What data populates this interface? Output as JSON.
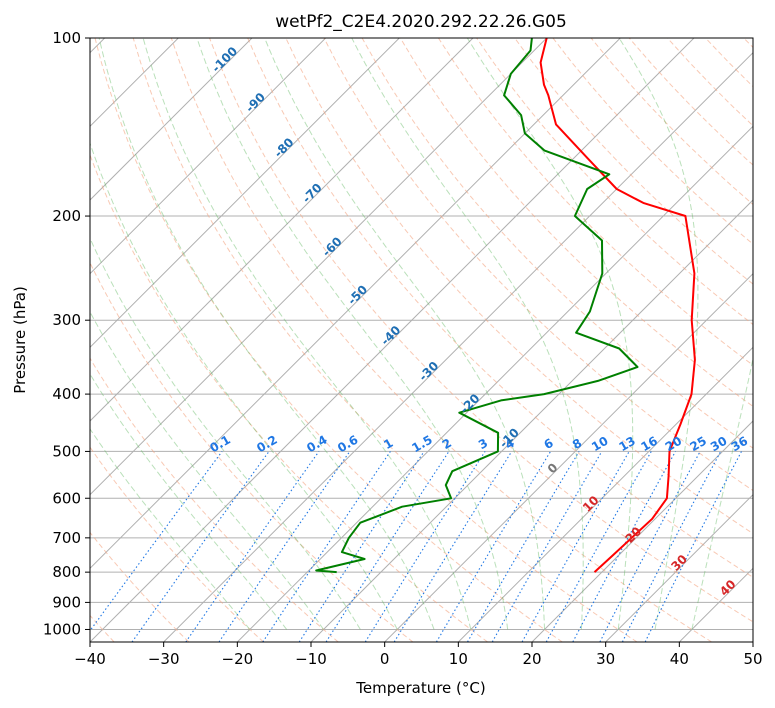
{
  "chart_data": {
    "type": "line",
    "title": "wetPf2_C2E4.2020.292.22.26.G05",
    "xlabel": "Temperature (°C)",
    "ylabel": "Pressure (hPa)",
    "xlim": [
      -40,
      50
    ],
    "ylim": [
      1050,
      100
    ],
    "y_scale": "log",
    "x_ticks": [
      "−40",
      "−30",
      "−20",
      "−10",
      "0",
      "10",
      "20",
      "30",
      "40",
      "50"
    ],
    "y_ticks": [
      "100",
      "200",
      "300",
      "400",
      "500",
      "600",
      "700",
      "800",
      "900",
      "1000"
    ],
    "grid": true,
    "skew_degrees": 45,
    "series": [
      {
        "name": "",
        "role": "temperature",
        "color": "#ff0000",
        "points": [
          [
            19.0,
            800
          ],
          [
            19.2,
            750
          ],
          [
            19.4,
            700
          ],
          [
            19.6,
            650
          ],
          [
            18.8,
            600
          ],
          [
            16.0,
            550
          ],
          [
            12.8,
            500
          ],
          [
            10.6,
            450
          ],
          [
            8.0,
            400
          ],
          [
            3.8,
            350
          ],
          [
            -2.0,
            300
          ],
          [
            -8.0,
            250
          ],
          [
            -17.0,
            200
          ],
          [
            -24.5,
            190
          ],
          [
            -30.0,
            180
          ],
          [
            -38.0,
            160
          ],
          [
            -47.0,
            140
          ],
          [
            -52.0,
            125
          ],
          [
            -54.0,
            120
          ],
          [
            -57.5,
            110
          ],
          [
            -60.0,
            100
          ]
        ]
      },
      {
        "name": "",
        "role": "dewpoint",
        "color": "#008000",
        "points": [
          [
            -16.0,
            800
          ],
          [
            -19.0,
            795
          ],
          [
            -14.0,
            760
          ],
          [
            -18.0,
            740
          ],
          [
            -19.0,
            700
          ],
          [
            -19.5,
            660
          ],
          [
            -16.0,
            620
          ],
          [
            -10.5,
            600
          ],
          [
            -13.0,
            570
          ],
          [
            -14.0,
            540
          ],
          [
            -10.5,
            500
          ],
          [
            -13.0,
            465
          ],
          [
            -21.0,
            430
          ],
          [
            -17.0,
            410
          ],
          [
            -12.0,
            400
          ],
          [
            -6.5,
            380
          ],
          [
            -3.0,
            360
          ],
          [
            -8.0,
            335
          ],
          [
            -16.0,
            315
          ],
          [
            -17.0,
            290
          ],
          [
            -20.5,
            250
          ],
          [
            -25.0,
            220
          ],
          [
            -32.0,
            200
          ],
          [
            -34.0,
            180
          ],
          [
            -33.0,
            170
          ],
          [
            -45.0,
            155
          ],
          [
            -50.0,
            145
          ],
          [
            -53.0,
            135
          ],
          [
            -58.0,
            125
          ],
          [
            -60.0,
            115
          ],
          [
            -60.5,
            105
          ],
          [
            -62.0,
            100
          ]
        ]
      }
    ],
    "dry_adiabat_labels": [
      "-100",
      "-90",
      "-80",
      "-70",
      "-60",
      "-50",
      "-40",
      "-30",
      "-20",
      "-10",
      "0",
      "10",
      "20",
      "30",
      "40"
    ],
    "mixing_ratio_labels": [
      "0.1",
      "0.2",
      "0.4",
      "0.6",
      "1",
      "1.5",
      "2",
      "3",
      "4",
      "6",
      "8",
      "10",
      "13",
      "16",
      "20",
      "25",
      "30",
      "36"
    ]
  }
}
